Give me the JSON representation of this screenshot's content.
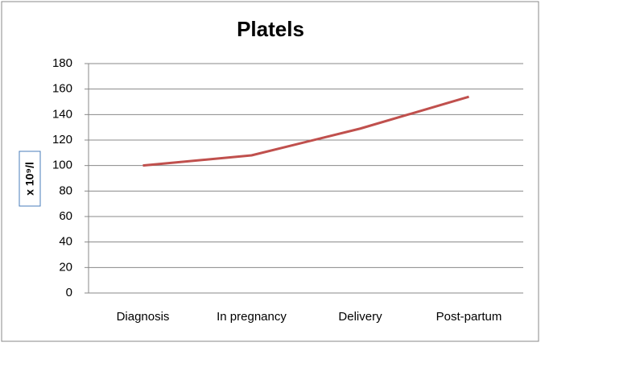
{
  "chart_data": {
    "type": "line",
    "title": "Platels",
    "y_label": "x 10⁹/l",
    "categories": [
      "Diagnosis",
      "In pregnancy",
      "Delivery",
      "Post-partum"
    ],
    "values": [
      100,
      108,
      129,
      154
    ],
    "color": "#c0504d",
    "ylim": [
      0,
      180
    ],
    "yticks": [
      0,
      20,
      40,
      60,
      80,
      100,
      120,
      140,
      160,
      180
    ],
    "grid": true
  }
}
